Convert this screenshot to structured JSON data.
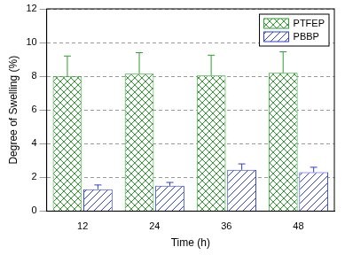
{
  "chart_data": {
    "type": "bar",
    "x_label": "Time (h)",
    "y_label": "Degree of Swelling (%)",
    "categories": [
      "12",
      "24",
      "36",
      "48"
    ],
    "series": [
      {
        "name": "PTFEP",
        "color": "#2e9e2e",
        "values": [
          8.0,
          8.15,
          8.05,
          8.2
        ],
        "errors": [
          1.2,
          1.25,
          1.2,
          1.25
        ]
      },
      {
        "name": "PBBP",
        "color": "#2f3fd0",
        "values": [
          1.3,
          1.5,
          2.45,
          2.3
        ],
        "errors": [
          0.25,
          0.2,
          0.35,
          0.3
        ]
      }
    ],
    "ylim": [
      0,
      12
    ],
    "yticks": [
      0,
      2,
      4,
      6,
      8,
      10,
      12
    ],
    "grid": true,
    "legend": "upper right"
  }
}
